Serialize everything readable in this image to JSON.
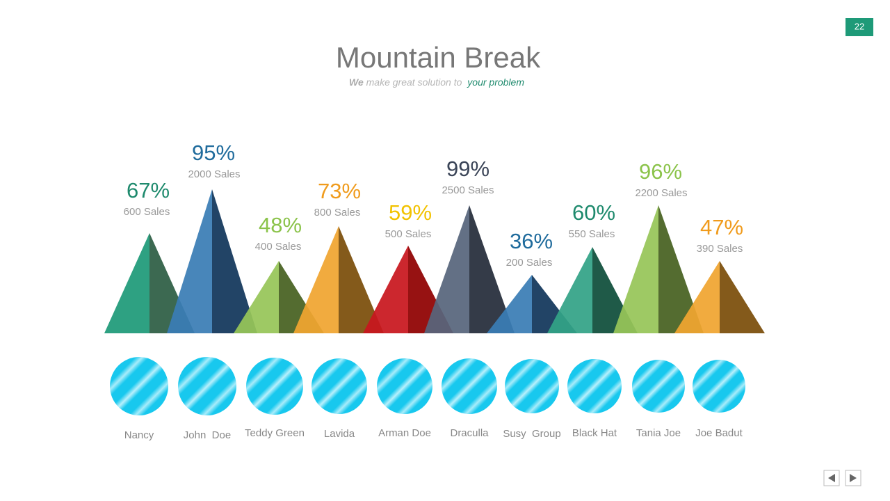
{
  "header": {
    "title": "Mountain Break",
    "subtitle": {
      "lead": "We",
      "middle": "make great solution to",
      "highlight": "your problem"
    }
  },
  "page_number": "22",
  "items": [
    {
      "percent": "67%",
      "sales": "600 Sales",
      "name": "Nancy"
    },
    {
      "percent": "95%",
      "sales": "2000 Sales",
      "name": "John  Doe"
    },
    {
      "percent": "48%",
      "sales": "400 Sales",
      "name": "Teddy Green"
    },
    {
      "percent": "73%",
      "sales": "800 Sales",
      "name": "Lavida"
    },
    {
      "percent": "59%",
      "sales": "500 Sales",
      "name": "Arman Doe"
    },
    {
      "percent": "99%",
      "sales": "2500 Sales",
      "name": "Draculla"
    },
    {
      "percent": "36%",
      "sales": "200 Sales",
      "name": "Susy  Group"
    },
    {
      "percent": "60%",
      "sales": "550 Sales",
      "name": "Black Hat"
    },
    {
      "percent": "96%",
      "sales": "2200 Sales",
      "name": "Tania Joe"
    },
    {
      "percent": "47%",
      "sales": "390 Sales",
      "name": "Joe Badut"
    }
  ]
}
